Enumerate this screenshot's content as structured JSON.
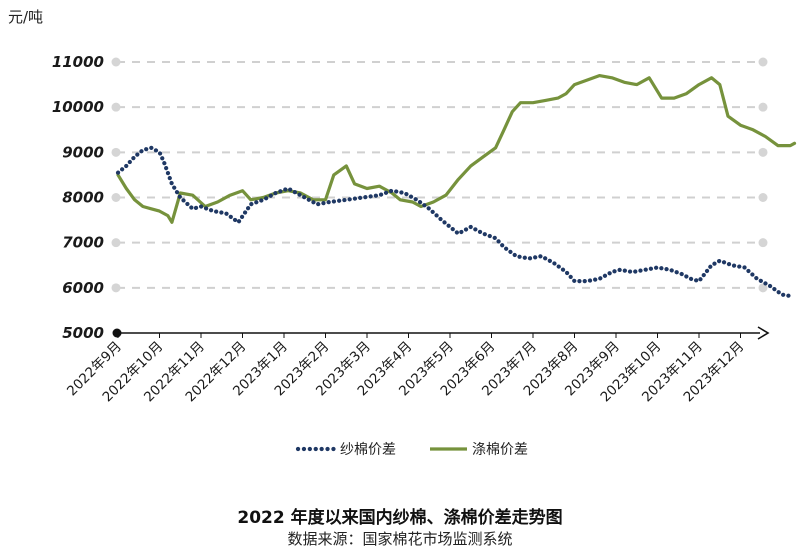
{
  "chart_data": {
    "type": "line",
    "title": "2022 年度以来国内纱棉、涤棉价差走势图",
    "source": "数据来源：国家棉花市场监测系统",
    "ylabel": "元/吨",
    "ylim": [
      5000,
      11000
    ],
    "yticks": [
      5000,
      6000,
      7000,
      8000,
      9000,
      10000,
      11000
    ],
    "grid": true,
    "legend_position": "bottom",
    "categories": [
      "2022年9月",
      "2022年10月",
      "2022年11月",
      "2022年12月",
      "2023年1月",
      "2023年2月",
      "2023年3月",
      "2023年4月",
      "2023年5月",
      "2023年6月",
      "2023年7月",
      "2023年8月",
      "2023年9月",
      "2023年10月",
      "2023年11月",
      "2023年12月"
    ],
    "series": [
      {
        "name": "纱棉价差",
        "color": "#1f3864",
        "style": "dotted",
        "values": [
          [
            0.0,
            8550
          ],
          [
            0.2,
            8700
          ],
          [
            0.4,
            8900
          ],
          [
            0.6,
            9050
          ],
          [
            0.8,
            9100
          ],
          [
            1.0,
            9000
          ],
          [
            1.1,
            8800
          ],
          [
            1.3,
            8300
          ],
          [
            1.5,
            8000
          ],
          [
            1.8,
            7750
          ],
          [
            2.0,
            7800
          ],
          [
            2.3,
            7700
          ],
          [
            2.6,
            7650
          ],
          [
            2.9,
            7450
          ],
          [
            3.2,
            7850
          ],
          [
            3.5,
            7950
          ],
          [
            3.8,
            8100
          ],
          [
            4.1,
            8200
          ],
          [
            4.4,
            8050
          ],
          [
            4.6,
            7950
          ],
          [
            4.8,
            7850
          ],
          [
            5.1,
            7900
          ],
          [
            5.5,
            7950
          ],
          [
            5.9,
            8000
          ],
          [
            6.3,
            8050
          ],
          [
            6.6,
            8150
          ],
          [
            6.9,
            8100
          ],
          [
            7.2,
            7950
          ],
          [
            7.5,
            7750
          ],
          [
            7.8,
            7500
          ],
          [
            8.0,
            7350
          ],
          [
            8.2,
            7200
          ],
          [
            8.5,
            7350
          ],
          [
            8.8,
            7200
          ],
          [
            9.1,
            7100
          ],
          [
            9.3,
            6900
          ],
          [
            9.6,
            6700
          ],
          [
            9.9,
            6650
          ],
          [
            10.2,
            6700
          ],
          [
            10.5,
            6550
          ],
          [
            10.8,
            6350
          ],
          [
            11.0,
            6150
          ],
          [
            11.3,
            6150
          ],
          [
            11.6,
            6200
          ],
          [
            11.9,
            6350
          ],
          [
            12.1,
            6400
          ],
          [
            12.4,
            6350
          ],
          [
            12.7,
            6400
          ],
          [
            13.0,
            6450
          ],
          [
            13.3,
            6400
          ],
          [
            13.6,
            6300
          ],
          [
            13.8,
            6200
          ],
          [
            14.0,
            6150
          ],
          [
            14.3,
            6500
          ],
          [
            14.5,
            6600
          ],
          [
            14.8,
            6500
          ],
          [
            15.1,
            6450
          ],
          [
            15.4,
            6200
          ],
          [
            15.7,
            6050
          ],
          [
            16.0,
            5850
          ],
          [
            16.2,
            5820
          ]
        ]
      },
      {
        "name": "涤棉价差",
        "color": "#76923c",
        "style": "solid",
        "values": [
          [
            0.0,
            8500
          ],
          [
            0.2,
            8200
          ],
          [
            0.4,
            7950
          ],
          [
            0.6,
            7800
          ],
          [
            0.8,
            7750
          ],
          [
            1.0,
            7700
          ],
          [
            1.2,
            7600
          ],
          [
            1.3,
            7450
          ],
          [
            1.5,
            8100
          ],
          [
            1.8,
            8050
          ],
          [
            2.1,
            7800
          ],
          [
            2.4,
            7900
          ],
          [
            2.7,
            8050
          ],
          [
            3.0,
            8150
          ],
          [
            3.2,
            7950
          ],
          [
            3.5,
            8000
          ],
          [
            3.8,
            8100
          ],
          [
            4.1,
            8150
          ],
          [
            4.4,
            8100
          ],
          [
            4.7,
            7950
          ],
          [
            5.0,
            7950
          ],
          [
            5.2,
            8500
          ],
          [
            5.5,
            8700
          ],
          [
            5.7,
            8300
          ],
          [
            6.0,
            8200
          ],
          [
            6.3,
            8250
          ],
          [
            6.6,
            8100
          ],
          [
            6.8,
            7950
          ],
          [
            7.1,
            7900
          ],
          [
            7.3,
            7800
          ],
          [
            7.6,
            7900
          ],
          [
            7.9,
            8050
          ],
          [
            8.2,
            8400
          ],
          [
            8.5,
            8700
          ],
          [
            8.8,
            8900
          ],
          [
            9.1,
            9100
          ],
          [
            9.3,
            9500
          ],
          [
            9.5,
            9900
          ],
          [
            9.7,
            10100
          ],
          [
            10.0,
            10100
          ],
          [
            10.3,
            10150
          ],
          [
            10.6,
            10200
          ],
          [
            10.8,
            10300
          ],
          [
            11.0,
            10500
          ],
          [
            11.3,
            10600
          ],
          [
            11.6,
            10700
          ],
          [
            11.9,
            10650
          ],
          [
            12.2,
            10550
          ],
          [
            12.5,
            10500
          ],
          [
            12.8,
            10650
          ],
          [
            13.1,
            10200
          ],
          [
            13.4,
            10200
          ],
          [
            13.7,
            10300
          ],
          [
            14.0,
            10500
          ],
          [
            14.3,
            10650
          ],
          [
            14.5,
            10500
          ],
          [
            14.7,
            9800
          ],
          [
            15.0,
            9600
          ],
          [
            15.3,
            9500
          ],
          [
            15.6,
            9350
          ],
          [
            15.9,
            9150
          ],
          [
            16.2,
            9150
          ],
          [
            16.3,
            9200
          ]
        ]
      }
    ]
  }
}
